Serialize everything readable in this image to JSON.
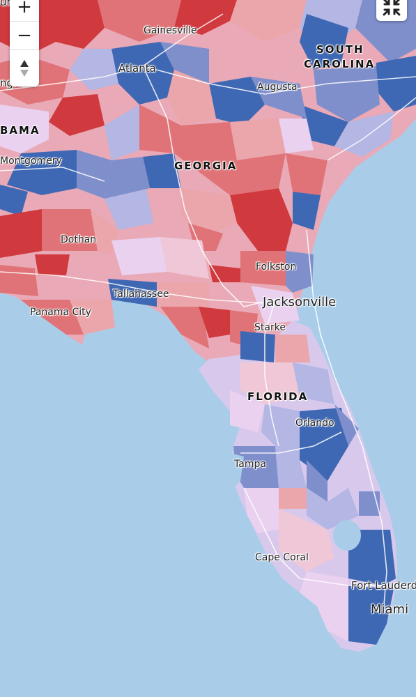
{
  "map": {
    "colors": {
      "water": "#a9cde9",
      "strong_red": "#d03a3f",
      "red": "#e07377",
      "light_red": "#eba6ab",
      "pink": "#f0c7d6",
      "lavender": "#e9d1ef",
      "light_blue": "#b4b6e3",
      "blue": "#7f8fcc",
      "strong_blue": "#3f68b4",
      "road": "#ffffff"
    },
    "labels": {
      "gainesville": "Gainesville",
      "atlanta": "Atlanta",
      "birmingham_partial": "ngham",
      "augusta": "Augusta",
      "alabama_partial": "BAMA",
      "south": "SOUTH",
      "carolina": "CAROLINA",
      "montgomery": "Montgomery",
      "georgia": "GEORGIA",
      "dothan": "Dothan",
      "folkston": "Folkston",
      "tallahassee": "Tallahassee",
      "jacksonville": "Jacksonville",
      "panama_city": "Panama City",
      "starke": "Starke",
      "florida": "FLORIDA",
      "orlando": "Orlando",
      "tampa": "Tampa",
      "cape_coral": "Cape Coral",
      "fort_lauderdale": "Fort Lauderd",
      "miami": "Miami",
      "top_partial": "un"
    }
  },
  "controls": {
    "zoom_in": "+",
    "zoom_out": "−",
    "compass": "▲▼"
  }
}
